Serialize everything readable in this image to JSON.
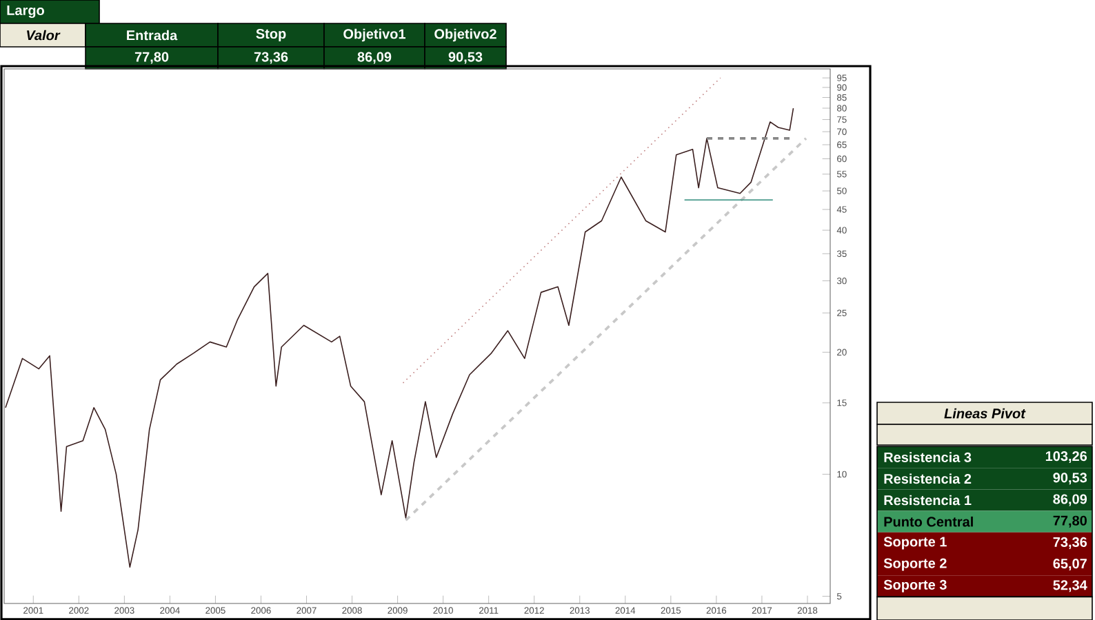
{
  "chart_data": [
    {
      "type": "other",
      "title": "Largo",
      "annotations": [
        "Valor"
      ],
      "categories": [
        "Entrada",
        "Stop",
        "Objetivo1",
        "Objetivo2"
      ],
      "value_labels": [
        "77,80",
        "73,36",
        "86,09",
        "90,53"
      ],
      "colors": [
        "#0b4a1a",
        "#0b4a1a",
        "#0b4a1a",
        "#0b4a1a"
      ]
    },
    {
      "type": "line",
      "log": "y",
      "xlim": [
        2000.36,
        2018.5
      ],
      "ylim": [
        4.8,
        100
      ],
      "xticks": [
        2001,
        2002,
        2003,
        2004,
        2005,
        2006,
        2007,
        2008,
        2009,
        2010,
        2011,
        2012,
        2013,
        2014,
        2015,
        2016,
        2017,
        2018
      ],
      "yticks": [
        5,
        10,
        15,
        20,
        25,
        30,
        35,
        40,
        45,
        50,
        55,
        60,
        65,
        70,
        75,
        80,
        85,
        90,
        95
      ],
      "series": [
        {
          "color": "#3b1f1f",
          "line_style": "solid",
          "x": [
            2000.39,
            2000.76,
            2001.12,
            2001.36,
            2001.61,
            2001.73,
            2002.09,
            2002.33,
            2002.58,
            2002.82,
            2003.12,
            2003.3,
            2003.55,
            2003.79,
            2004.15,
            2004.52,
            2004.88,
            2005.24,
            2005.48,
            2005.85,
            2006.15,
            2006.33,
            2006.45,
            2006.94,
            2007.55,
            2007.73,
            2007.97,
            2008.27,
            2008.64,
            2008.88,
            2009.18,
            2009.36,
            2009.61,
            2009.85,
            2010.21,
            2010.58,
            2011.06,
            2011.42,
            2011.79,
            2012.15,
            2012.52,
            2012.76,
            2013.12,
            2013.48,
            2013.91,
            2014.45,
            2014.88,
            2015.12,
            2015.48,
            2015.61,
            2015.79,
            2016.03,
            2016.52,
            2016.76,
            2017.18,
            2017.36,
            2017.61,
            2017.69
          ],
          "values": [
            14.6,
            19.3,
            18.2,
            19.6,
            8.1,
            11.7,
            12.1,
            14.6,
            12.9,
            10.0,
            5.9,
            7.3,
            12.9,
            17.1,
            18.7,
            19.9,
            21.2,
            20.6,
            24.0,
            29.0,
            31.3,
            16.5,
            20.6,
            23.3,
            21.2,
            21.9,
            16.5,
            15.1,
            8.9,
            12.1,
            7.8,
            10.7,
            15.1,
            11.0,
            14.1,
            17.6,
            19.9,
            22.6,
            19.3,
            28.1,
            29.0,
            23.3,
            39.6,
            42.2,
            54.1,
            42.2,
            39.6,
            61.4,
            63.3,
            50.9,
            67.4,
            50.9,
            49.3,
            52.5,
            74.0,
            71.7,
            70.6,
            80.0
          ]
        },
        {
          "color": "#c8c8c8",
          "line_style": "dashed",
          "x": [
            2009.18,
            2017.97
          ],
          "values": [
            7.7,
            67.4
          ]
        },
        {
          "color": "#c08080",
          "line_style": "dotted",
          "x": [
            2009.12,
            2016.09
          ],
          "values": [
            16.8,
            95.0
          ]
        },
        {
          "color": "#2e8b7a",
          "line_style": "solid",
          "x": [
            2015.3,
            2017.24
          ],
          "values": [
            47.5,
            47.5
          ]
        },
        {
          "color": "#888888",
          "line_style": "dashed",
          "x": [
            2015.79,
            2017.61
          ],
          "values": [
            67.4,
            67.4
          ]
        }
      ]
    },
    {
      "type": "other",
      "title": "Lineas Pivot",
      "categories": [
        "Resistencia 3",
        "Resistencia 2",
        "Resistencia 1",
        "Punto Central",
        "Soporte 1",
        "Soporte 2",
        "Soporte 3"
      ],
      "value_labels": [
        "103,26",
        "90,53",
        "86,09",
        "77,80",
        "73,36",
        "65,07",
        "52,34"
      ],
      "colors": [
        "#0b4a1a",
        "#0b4a1a",
        "#0b4a1a",
        "#3c9a5f",
        "#7a0000",
        "#7a0000",
        "#7a0000"
      ]
    }
  ]
}
